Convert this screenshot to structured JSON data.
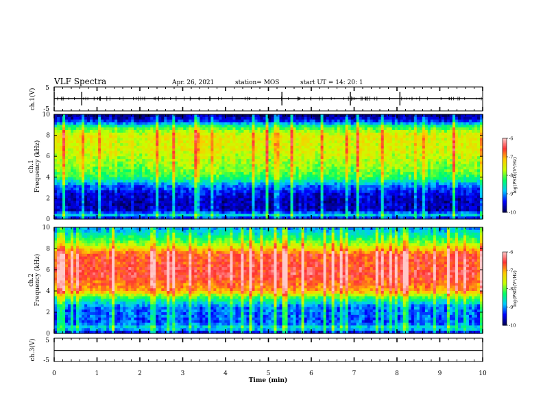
{
  "header": {
    "title": "VLF Spectra",
    "date": "Apr. 26, 2021",
    "station": "station= MOS",
    "start": "start  UT =   14: 20: 1"
  },
  "chart_data": {
    "type": "heatmap",
    "xlabel": "Time  (min)",
    "xlim": [
      0,
      10
    ],
    "xticks": [
      "0",
      "1",
      "2",
      "3",
      "4",
      "5",
      "6",
      "7",
      "8",
      "9",
      "10"
    ],
    "panels": [
      {
        "id": "ch1-waveform",
        "type": "line",
        "ylabel": "ch.1(V)",
        "ylim": [
          -5,
          5
        ],
        "yticks": [
          "5",
          "-5"
        ],
        "baseline": 0
      },
      {
        "id": "ch1-spectrogram",
        "type": "heatmap",
        "ylabel_top": "ch.1",
        "ylabel": "Frequency (kHz)",
        "ylim": [
          0,
          10
        ],
        "yticks": [
          "0",
          "2",
          "4",
          "6",
          "8",
          "10"
        ],
        "band_profile": [
          {
            "f": 0.0,
            "v": -9.6
          },
          {
            "f": 0.4,
            "v": -8.7
          },
          {
            "f": 0.8,
            "v": -9.6
          },
          {
            "f": 1.5,
            "v": -9.7
          },
          {
            "f": 2.5,
            "v": -9.5
          },
          {
            "f": 3.2,
            "v": -9.1
          },
          {
            "f": 4.0,
            "v": -8.2
          },
          {
            "f": 5.0,
            "v": -7.9
          },
          {
            "f": 6.5,
            "v": -7.6
          },
          {
            "f": 8.0,
            "v": -7.5
          },
          {
            "f": 8.8,
            "v": -8.2
          },
          {
            "f": 9.3,
            "v": -9.3
          },
          {
            "f": 10.0,
            "v": -9.9
          }
        ]
      },
      {
        "id": "ch2-spectrogram",
        "type": "heatmap",
        "ylabel_top": "ch.2",
        "ylabel": "Frequency (kHz)",
        "ylim": [
          0,
          10
        ],
        "yticks": [
          "0",
          "2",
          "4",
          "6",
          "8",
          "10"
        ],
        "band_profile": [
          {
            "f": 0.0,
            "v": -9.7
          },
          {
            "f": 0.5,
            "v": -8.6
          },
          {
            "f": 1.0,
            "v": -9.2
          },
          {
            "f": 2.5,
            "v": -9.1
          },
          {
            "f": 3.5,
            "v": -8.0
          },
          {
            "f": 4.0,
            "v": -7.0
          },
          {
            "f": 5.5,
            "v": -6.5
          },
          {
            "f": 7.5,
            "v": -6.7
          },
          {
            "f": 8.2,
            "v": -7.6
          },
          {
            "f": 9.0,
            "v": -8.3
          },
          {
            "f": 10.0,
            "v": -9.0
          }
        ]
      },
      {
        "id": "ch3-waveform",
        "type": "line",
        "ylabel": "ch.3(V)",
        "ylim": [
          -5,
          5
        ],
        "yticks": [
          "5",
          "-5"
        ],
        "baseline": 0
      }
    ],
    "colorbar": {
      "label": "log(PSD)(V²/Hz)",
      "range": [
        -10,
        -6
      ],
      "ticks": [
        "-6",
        "-7",
        "-8",
        "-9",
        "-10"
      ],
      "colors": [
        "#000050",
        "#0000ff",
        "#00c8ff",
        "#00ff64",
        "#c8ff00",
        "#ffc800",
        "#ff3232",
        "#ffc8c8"
      ]
    }
  }
}
